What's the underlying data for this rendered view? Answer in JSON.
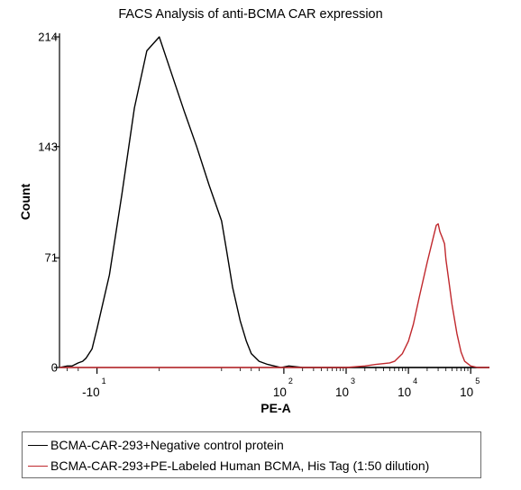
{
  "chart_data": {
    "type": "area",
    "title": "FACS Analysis of anti-BCMA CAR expression",
    "xlabel": "PE-A",
    "ylabel": "Count",
    "x_scale": "biexponential (logicle)",
    "xlim": [
      -40,
      200000
    ],
    "ylim": [
      0,
      214
    ],
    "y_ticks": [
      0,
      71,
      143,
      214
    ],
    "y_tick_labels": [
      "0",
      "71",
      "143",
      "214"
    ],
    "x_ticks": [
      {
        "value": -10,
        "base": "-10",
        "exp": "1"
      },
      {
        "value": 100,
        "base": "10",
        "exp": "2"
      },
      {
        "value": 1000,
        "base": "10",
        "exp": "3"
      },
      {
        "value": 10000,
        "base": "10",
        "exp": "4"
      },
      {
        "value": 100000,
        "base": "10",
        "exp": "5"
      }
    ],
    "legend_position": "bottom",
    "series": [
      {
        "name": "BCMA-CAR-293+Negative control protein",
        "color": "#000000",
        "x": [
          -40,
          -30,
          -25,
          -20,
          -17,
          -15,
          -12,
          -10,
          -8,
          -6,
          -4,
          -2,
          0,
          2,
          4,
          6,
          8,
          10,
          12,
          15,
          20,
          25,
          30,
          40,
          55,
          70,
          90,
          120,
          200,
          1000,
          20000,
          200000
        ],
        "y": [
          0,
          1,
          1,
          3,
          4,
          6,
          12,
          25,
          60,
          112,
          168,
          205,
          214,
          190,
          166,
          143,
          118,
          95,
          76,
          52,
          30,
          17,
          9,
          4,
          2,
          1,
          0,
          1,
          0,
          0,
          0,
          0
        ]
      },
      {
        "name": "BCMA-CAR-293+PE-Labeled Human BCMA, His Tag (1:50 dilution)",
        "color": "#c0282d",
        "x": [
          -40,
          100,
          500,
          1000,
          2000,
          3000,
          5000,
          6000,
          8000,
          10000,
          12000,
          15000,
          20000,
          25000,
          28000,
          30000,
          32000,
          35000,
          38000,
          40000,
          45000,
          50000,
          60000,
          70000,
          80000,
          100000,
          130000,
          200000
        ],
        "y": [
          0,
          0,
          0,
          0,
          1,
          2,
          3,
          4,
          9,
          17,
          28,
          46,
          68,
          84,
          92,
          93,
          88,
          84,
          80,
          70,
          55,
          41,
          22,
          10,
          4,
          1,
          0,
          0
        ]
      }
    ]
  }
}
